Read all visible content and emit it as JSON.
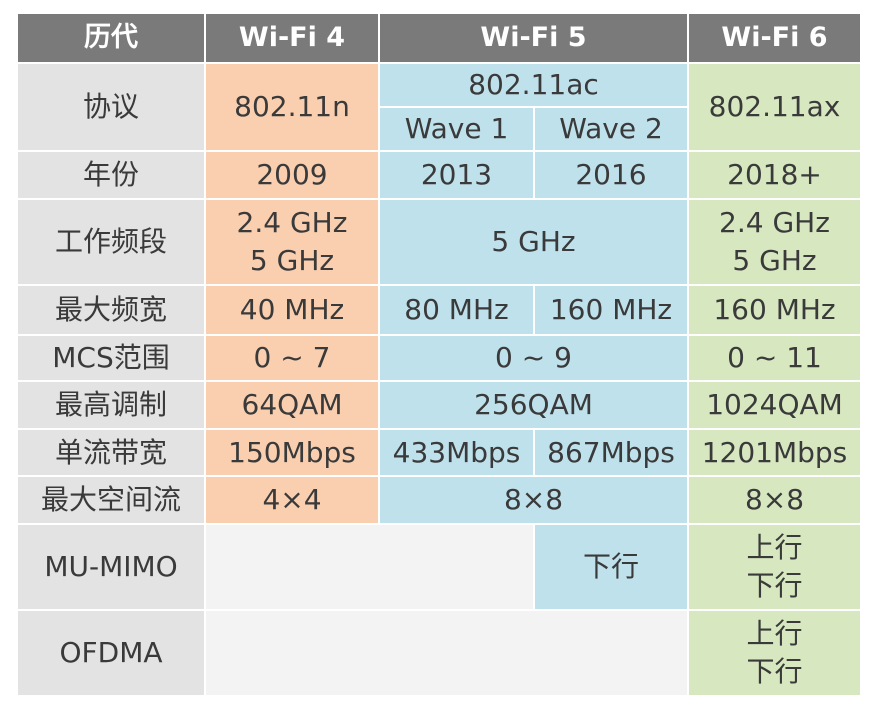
{
  "header": {
    "generation": "历代",
    "wifi4": "Wi-Fi 4",
    "wifi5": "Wi-Fi 5",
    "wifi6": "Wi-Fi 6"
  },
  "rows": {
    "protocol": {
      "label": "协议",
      "wifi4": "802.11n",
      "wifi5": "802.11ac",
      "wave1": "Wave 1",
      "wave2": "Wave 2",
      "wifi6": "802.11ax"
    },
    "year": {
      "label": "年份",
      "wifi4": "2009",
      "wave1": "2013",
      "wave2": "2016",
      "wifi6": "2018+"
    },
    "band": {
      "label": "工作频段",
      "wifi4_a": "2.4 GHz",
      "wifi4_b": "5 GHz",
      "wifi5": "5 GHz",
      "wifi6_a": "2.4 GHz",
      "wifi6_b": "5 GHz"
    },
    "bandwidth": {
      "label": "最大频宽",
      "wifi4": "40 MHz",
      "wave1": "80 MHz",
      "wave2": "160 MHz",
      "wifi6": "160 MHz"
    },
    "mcs": {
      "label": "MCS范围",
      "wifi4": "0 ~ 7",
      "wifi5": "0 ~ 9",
      "wifi6": "0 ~ 11"
    },
    "modulation": {
      "label": "最高调制",
      "wifi4": "64QAM",
      "wifi5": "256QAM",
      "wifi6": "1024QAM"
    },
    "stream_rate": {
      "label": "单流带宽",
      "wifi4": "150Mbps",
      "wave1": "433Mbps",
      "wave2": "867Mbps",
      "wifi6": "1201Mbps"
    },
    "spatial_streams": {
      "label": "最大空间流",
      "wifi4": "4×4",
      "wifi5": "8×8",
      "wifi6": "8×8"
    },
    "mumimo": {
      "label": "MU-MIMO",
      "wave2": "下行",
      "wifi6_a": "上行",
      "wifi6_b": "下行"
    },
    "ofdma": {
      "label": "OFDMA",
      "wifi6_a": "上行",
      "wifi6_b": "下行"
    }
  }
}
